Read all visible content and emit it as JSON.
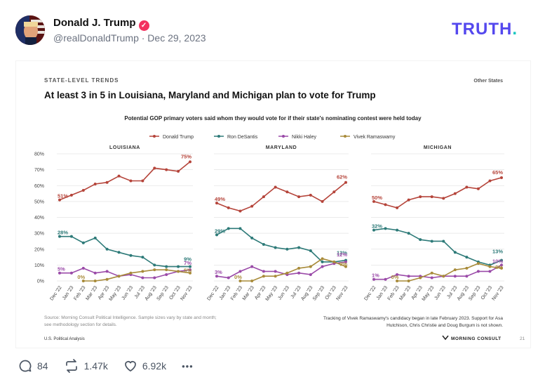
{
  "post": {
    "author_name": "Donald J. Trump",
    "handle_date": "@realDonaldTrump · Dec 29, 2023",
    "brand": "TRUTH",
    "brand_dot": "."
  },
  "actions": {
    "replies": "84",
    "retruths": "1.47k",
    "likes": "6.92k",
    "more": "•••"
  },
  "figure": {
    "kicker": "STATE-LEVEL TRENDS",
    "kicker_right": "Other States",
    "title": "At least 3 in 5 in Louisiana, Maryland and Michigan plan to vote for Trump",
    "subtitle": "Potential GOP primary voters said whom they would vote for if their state's nominating contest were held today",
    "source": [
      "Source: Morning Consult Political Intelligence. Sample sizes vary by state and month;",
      "see methodology section for details."
    ],
    "note": [
      "Tracking of Vivek Ramaswamy's candidacy began in late February 2023. Support for Asa",
      "Hutchison, Chris Christie and Doug Burgum is not shown."
    ],
    "bottom_left": "U.S. Political Analysis",
    "bottom_right": "MORNING CONSULT",
    "page_number": "21"
  },
  "chart_data": {
    "type": "line",
    "months": [
      "Dec '22",
      "Jan '23",
      "Feb '23",
      "Mar '23",
      "Apr '23",
      "May '23",
      "Jun '23",
      "Jul '23",
      "Aug '23",
      "Sep '23",
      "Oct '23",
      "Nov '23"
    ],
    "y_ticks": [
      "0%",
      "10%",
      "20%",
      "30%",
      "40%",
      "50%",
      "60%",
      "70%",
      "80%"
    ],
    "ylim": [
      0,
      80
    ],
    "legend": [
      {
        "name": "Donald Trump",
        "color": "#b5443a"
      },
      {
        "name": "Ron DeSantis",
        "color": "#2d7a78"
      },
      {
        "name": "Nikki Haley",
        "color": "#9a4aa8"
      },
      {
        "name": "Vivek Ramaswamy",
        "color": "#a88b3a"
      }
    ],
    "panels": [
      {
        "title": "LOUISIANA",
        "series": [
          {
            "name": "Donald Trump",
            "values": [
              51,
              54,
              57,
              61,
              62,
              66,
              63,
              63,
              71,
              70,
              69,
              75
            ],
            "first_label": "51%",
            "last_label": "75%"
          },
          {
            "name": "Ron DeSantis",
            "values": [
              28,
              28,
              24,
              27,
              20,
              18,
              16,
              15,
              10,
              9,
              9,
              9
            ],
            "first_label": "28%",
            "last_label": "9%"
          },
          {
            "name": "Nikki Haley",
            "values": [
              5,
              5,
              8,
              5,
              6,
              3,
              4,
              2,
              2,
              4,
              6,
              7
            ],
            "first_label": "5%",
            "last_label": "7%"
          },
          {
            "name": "Vivek Ramaswamy",
            "values": [
              null,
              null,
              0,
              0,
              1,
              3,
              5,
              6,
              7,
              7,
              6,
              5
            ],
            "first_label": "0%",
            "last_label": "5%"
          }
        ]
      },
      {
        "title": "MARYLAND",
        "series": [
          {
            "name": "Donald Trump",
            "values": [
              49,
              46,
              44,
              47,
              53,
              59,
              56,
              53,
              54,
              50,
              56,
              62
            ],
            "first_label": "49%",
            "last_label": "62%"
          },
          {
            "name": "Ron DeSantis",
            "values": [
              29,
              33,
              33,
              27,
              23,
              21,
              20,
              21,
              19,
              12,
              12,
              13
            ],
            "first_label": "29%",
            "last_label": "13%"
          },
          {
            "name": "Nikki Haley",
            "values": [
              3,
              2,
              6,
              9,
              6,
              6,
              4,
              5,
              4,
              9,
              11,
              12
            ],
            "first_label": "3%",
            "last_label": "12%"
          },
          {
            "name": "Vivek Ramaswamy",
            "values": [
              null,
              null,
              0,
              0,
              3,
              3,
              5,
              8,
              9,
              14,
              12,
              9
            ],
            "first_label": "0%",
            "last_label": "9%"
          }
        ]
      },
      {
        "title": "MICHIGAN",
        "series": [
          {
            "name": "Donald Trump",
            "values": [
              50,
              48,
              46,
              51,
              53,
              53,
              52,
              55,
              59,
              58,
              63,
              65
            ],
            "first_label": "50%",
            "last_label": "65%"
          },
          {
            "name": "Ron DeSantis",
            "values": [
              32,
              33,
              32,
              30,
              26,
              25,
              25,
              18,
              15,
              12,
              10,
              13
            ],
            "first_label": "32%",
            "last_label": "13%"
          },
          {
            "name": "Nikki Haley",
            "values": [
              1,
              1,
              4,
              3,
              3,
              2,
              3,
              3,
              3,
              6,
              6,
              10
            ],
            "first_label": "1%",
            "last_label": "10%"
          },
          {
            "name": "Vivek Ramaswamy",
            "values": [
              null,
              null,
              0,
              0,
              2,
              5,
              3,
              7,
              8,
              11,
              9,
              8
            ],
            "first_label": "0%",
            "last_label": "8%"
          }
        ]
      }
    ]
  }
}
